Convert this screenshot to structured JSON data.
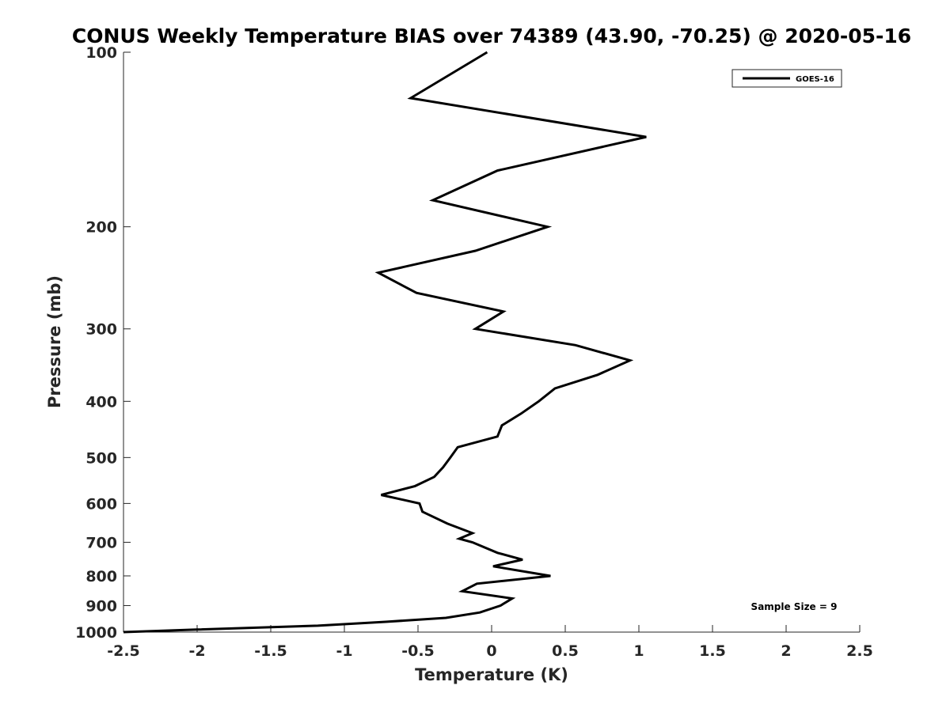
{
  "chart_data": {
    "type": "line",
    "title": "CONUS Weekly Temperature BIAS over 74389 (43.90, -70.25) @ 2020-05-16",
    "xlabel": "Temperature (K)",
    "ylabel": "Pressure (mb)",
    "xlim": [
      -2.5,
      2.5
    ],
    "ylim": [
      100,
      1000
    ],
    "y_scale": "log",
    "y_reversed": true,
    "x_ticks": [
      -2.5,
      -2,
      -1.5,
      -1,
      -0.5,
      0,
      0.5,
      1,
      1.5,
      2,
      2.5
    ],
    "x_tick_labels": [
      "-2.5",
      "-2",
      "-1.5",
      "-1",
      "-0.5",
      "0",
      "0.5",
      "1",
      "1.5",
      "2",
      "2.5"
    ],
    "y_ticks": [
      100,
      200,
      300,
      400,
      500,
      600,
      700,
      800,
      900,
      1000
    ],
    "y_tick_labels": [
      "100",
      "200",
      "300",
      "400",
      "500",
      "600",
      "700",
      "800",
      "900",
      "1000"
    ],
    "grid": false,
    "legend_position": "top-right",
    "series": [
      {
        "name": "GOES-16",
        "color": "#000000",
        "points": [
          [
            -0.03,
            100
          ],
          [
            -0.55,
            120
          ],
          [
            1.05,
            140
          ],
          [
            0.04,
            160
          ],
          [
            -0.4,
            180
          ],
          [
            0.38,
            200
          ],
          [
            -0.11,
            220
          ],
          [
            -0.77,
            240
          ],
          [
            -0.51,
            260
          ],
          [
            0.08,
            280
          ],
          [
            -0.11,
            300
          ],
          [
            0.57,
            320
          ],
          [
            0.94,
            340
          ],
          [
            0.72,
            360
          ],
          [
            0.43,
            380
          ],
          [
            0.32,
            400
          ],
          [
            0.2,
            420
          ],
          [
            0.07,
            440
          ],
          [
            0.04,
            460
          ],
          [
            -0.23,
            480
          ],
          [
            -0.28,
            500
          ],
          [
            -0.33,
            520
          ],
          [
            -0.39,
            540
          ],
          [
            -0.52,
            560
          ],
          [
            -0.75,
            580
          ],
          [
            -0.49,
            600
          ],
          [
            -0.47,
            620
          ],
          [
            -0.3,
            650
          ],
          [
            -0.13,
            675
          ],
          [
            -0.22,
            690
          ],
          [
            -0.13,
            700
          ],
          [
            0.04,
            730
          ],
          [
            0.21,
            750
          ],
          [
            0.01,
            770
          ],
          [
            0.4,
            800
          ],
          [
            -0.1,
            825
          ],
          [
            -0.2,
            850
          ],
          [
            0.14,
            875
          ],
          [
            0.06,
            900
          ],
          [
            -0.08,
            925
          ],
          [
            -0.31,
            945
          ],
          [
            -0.72,
            960
          ],
          [
            -1.18,
            975
          ],
          [
            -2.0,
            990
          ],
          [
            -2.5,
            1000
          ]
        ]
      }
    ],
    "annotation": "Sample Size = 9"
  }
}
